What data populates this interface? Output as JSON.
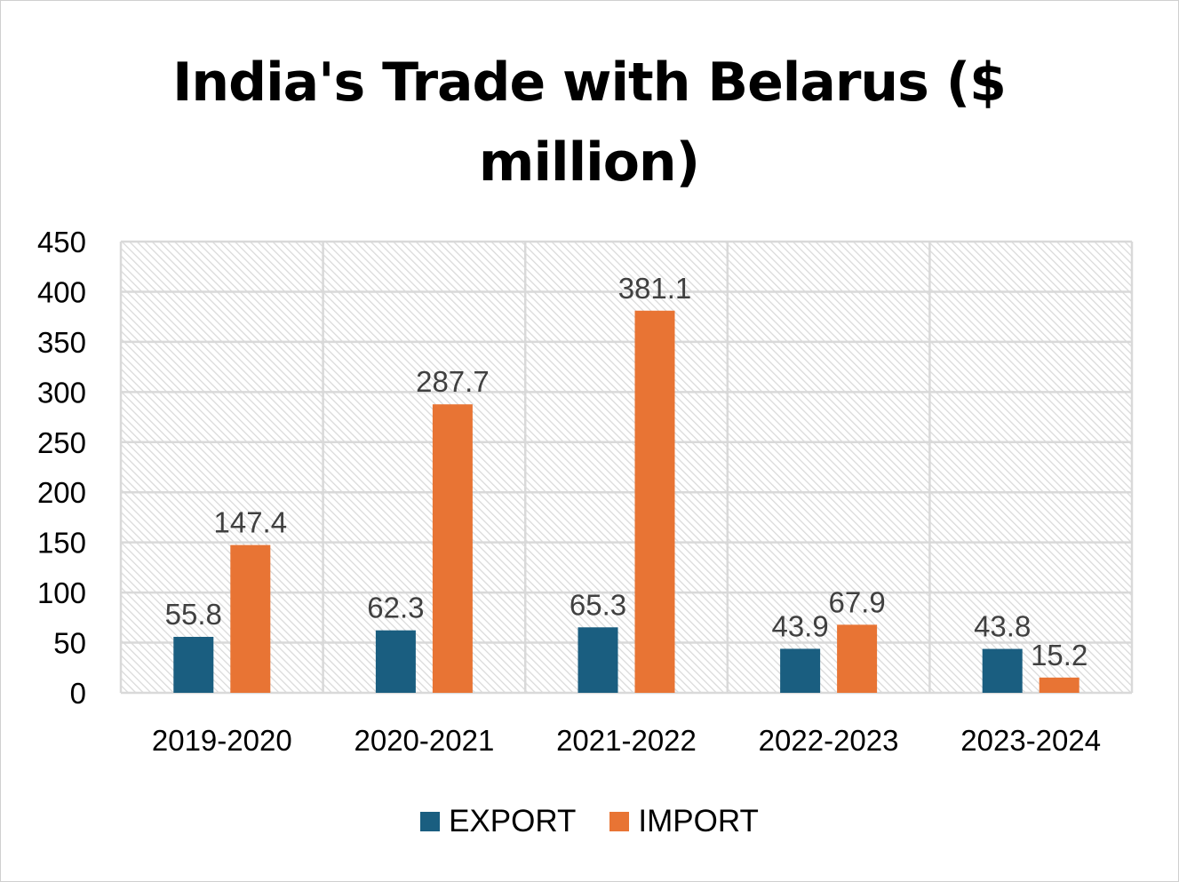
{
  "chart_data": {
    "type": "bar",
    "title": "India's Trade with Belarus ($ million)",
    "categories": [
      "2019-2020",
      "2020-2021",
      "2021-2022",
      "2022-2023",
      "2023-2024"
    ],
    "series": [
      {
        "name": "EXPORT",
        "color": "#1a5e80",
        "values": [
          55.8,
          62.3,
          65.3,
          43.9,
          43.8
        ]
      },
      {
        "name": "IMPORT",
        "color": "#e87434",
        "values": [
          147.4,
          287.7,
          381.1,
          67.9,
          15.2
        ]
      }
    ],
    "ylim": [
      0,
      450
    ],
    "yticks": [
      0,
      50,
      100,
      150,
      200,
      250,
      300,
      350,
      400,
      450
    ],
    "grid": true,
    "legend": "bottom"
  }
}
